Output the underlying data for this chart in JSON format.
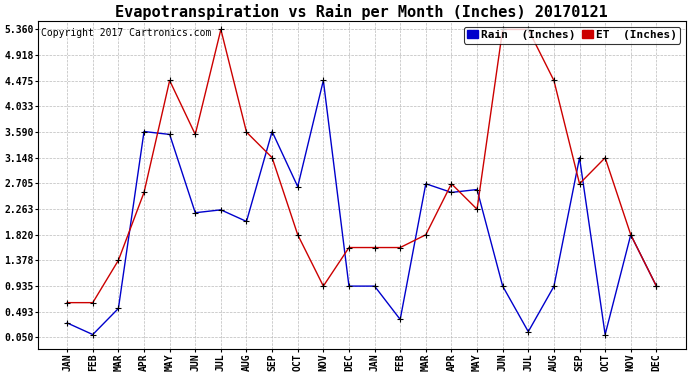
{
  "title": "Evapotranspiration vs Rain per Month (Inches) 20170121",
  "copyright": "Copyright 2017 Cartronics.com",
  "months": [
    "JAN",
    "FEB",
    "MAR",
    "APR",
    "MAY",
    "JUN",
    "JUL",
    "AUG",
    "SEP",
    "OCT",
    "NOV",
    "DEC",
    "JAN",
    "FEB",
    "MAR",
    "APR",
    "MAY",
    "JUN",
    "JUL",
    "AUG",
    "SEP",
    "OCT",
    "NOV",
    "DEC"
  ],
  "rain_values": [
    0.3,
    0.1,
    0.55,
    3.6,
    3.55,
    2.2,
    2.25,
    2.05,
    3.6,
    2.65,
    4.48,
    0.935,
    0.935,
    0.36,
    2.7,
    2.55,
    2.6,
    0.935,
    0.15,
    0.93,
    3.148,
    0.1,
    1.82,
    0.935
  ],
  "et_values": [
    0.65,
    0.65,
    1.38,
    2.55,
    4.48,
    3.55,
    5.36,
    3.59,
    3.15,
    1.82,
    0.935,
    1.6,
    1.6,
    1.6,
    1.82,
    2.7,
    2.26,
    5.36,
    5.36,
    4.48,
    2.7,
    3.148,
    1.82,
    0.935
  ],
  "rain_color": "#0000cc",
  "et_color": "#cc0000",
  "background_color": "#ffffff",
  "grid_color": "#bbbbbb",
  "yticks": [
    0.05,
    0.493,
    0.935,
    1.378,
    1.82,
    2.263,
    2.705,
    3.148,
    3.59,
    4.033,
    4.475,
    4.918,
    5.36
  ],
  "ylim_min": -0.15,
  "ylim_max": 5.5,
  "legend_rain_label": "Rain  (Inches)",
  "legend_et_label": "ET  (Inches)",
  "title_fontsize": 11,
  "copyright_fontsize": 7,
  "tick_fontsize": 7,
  "legend_fontsize": 8
}
